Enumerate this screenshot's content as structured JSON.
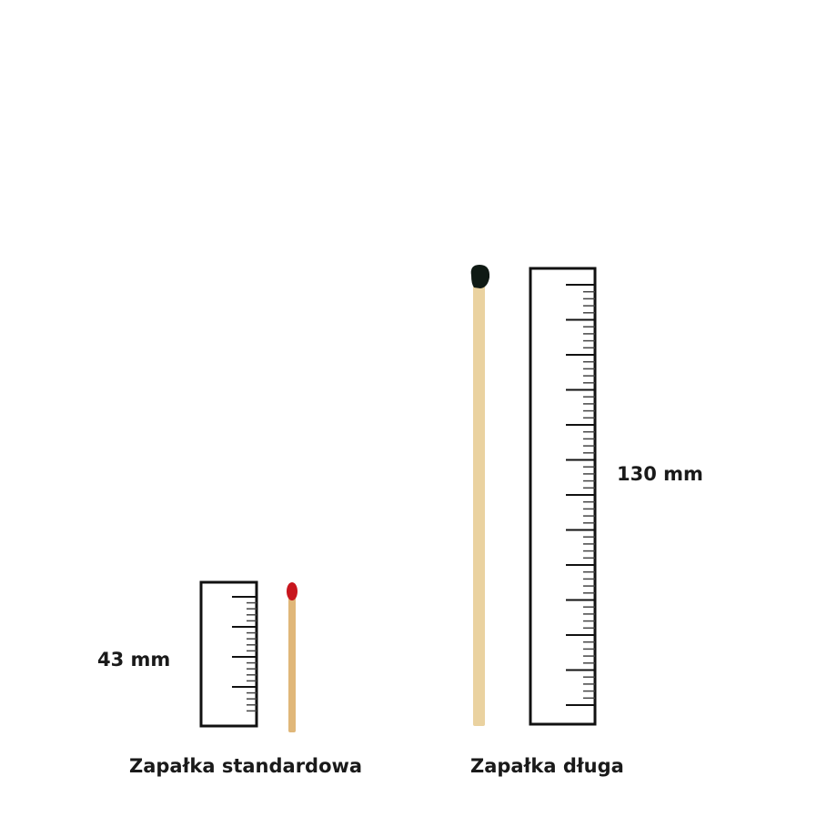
{
  "items": [
    {
      "caption": "Zapałka standardowa",
      "length_label": "43 mm",
      "head_color": "#c8161e"
    },
    {
      "caption": "Zapałka długa",
      "length_label": "130 mm",
      "head_color": "#0f1a14"
    }
  ],
  "colors": {
    "stick": "#ead2a0",
    "ruler": "#111111"
  }
}
